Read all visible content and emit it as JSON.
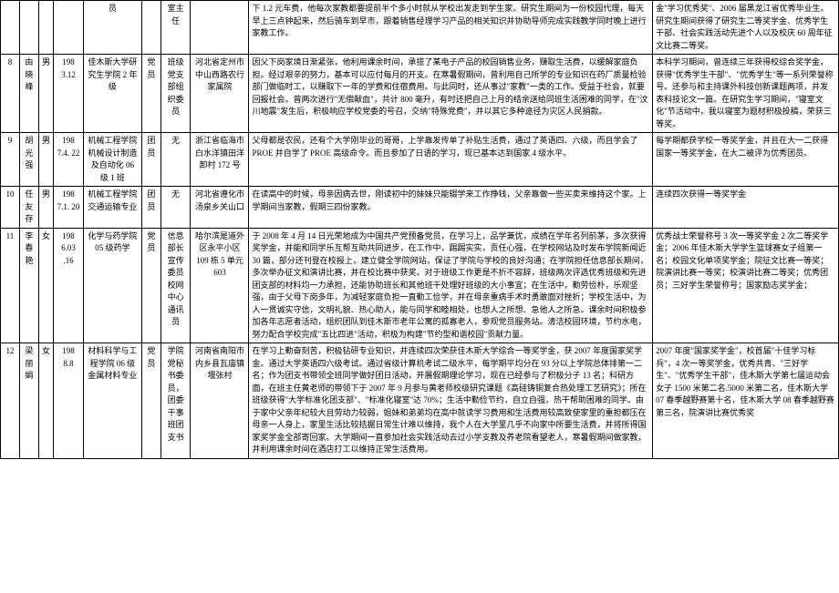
{
  "rows": [
    {
      "num": "",
      "name": "",
      "gender": "",
      "birth": "",
      "school": "员",
      "role1": "",
      "role2": "室主任",
      "addr": "",
      "desc": "下 1.2 元车费，他每次家教都要提前半个多小时就从学校出发走到学生家。研究生期间为一份校园代理，每天早上三点钟起来，然后骑车到早市，跟着销售经理学习产品的相关知识并协助导师完成实践教学同时晚上进行家教工作。",
      "award": "金\"学习优秀奖\"、2006 届黑龙江省优秀毕业生。研究生期间获得了研究生二等奖学金、优秀学生干部、社会实践活动先进个人以及校庆 60 周年征文比赛二等奖。"
    },
    {
      "num": "8",
      "name": "由晓峰",
      "gender": "男",
      "birth": "198 3.12",
      "school": "佳木斯大学研究生学院 2 年级",
      "role1": "党员",
      "role2": "班级党支部组织委员",
      "addr": "河北省定州市中山西路农行家属院",
      "desc": "因父下岗家境日渐紧张，他利用课余时间，承揽了某电子产品的校园销售业务，赚取生活费，以缓解家庭负担。经过艰辛的努力，基本可以应付每月的开支。在寒暑假期间，曾利用自己所学的专业知识在药厂质量检验部门做临时工，以赚取下一年的学费和住宿费用。与此同时，还从事过\"家教\"一类的工作。受益于社会，就要回报社会。曾两次进行\"无偿献血\"，共计 800 毫升，有时还把自己上月的结余送给同班生活困难的同学，在\"汶川地震\"发生后，积极响应学校党委的号召，交纳\"特殊党费\"，并以其它多种途径为灾区人民捐款。",
      "award": "本科学习期间，曾连续三年获得校综合奖学金，获得\"优秀学生干部\"、\"优秀学生\"等一系列荣誉称号。还参与和主持课外科技创新课题两项，并发表科技论文一篇。在研究生学习期间，\"寝室文化\"节活动中，我以寝室为题材积极投稿，荣获三等奖。"
    },
    {
      "num": "9",
      "name": "胡光强",
      "gender": "男",
      "birth": "198 7.4. 22",
      "school": "机械工程学院机械设计制造及自动化 06 级 1 班",
      "role1": "团员",
      "role2": "无",
      "addr": "浙江省临海市白水洋镇田洋卸村 172 号",
      "desc": "父母都是农民，还有个大学刚毕业的哥哥，上学靠发传单了补贴生活费，通过了英语四、六级，而且学会了 PROE 并自学了 PROE 高级命令。而且参加了日语的学习，现已基本达到国家 4 级水平。",
      "award": "每学期都获学校一等奖学金，并且在大一二获得国家一等奖学金，在大二被评为优秀团员。"
    },
    {
      "num": "10",
      "name": "任友存",
      "gender": "男",
      "birth": "198 7.1. 20",
      "school": "机械工程学院交通运输专业",
      "role1": "团员",
      "role2": "无",
      "addr": "河北省遵化市汤泉乡关山口",
      "desc": "在读高中的时候，母亲因病去世，刚读初中的妹妹只能辍学来工作挣钱，父亲靠做一些买卖来维持这个家。上学期间当家教，假期三四份家教。",
      "award": "连续四次获得一等奖学金"
    },
    {
      "num": "11",
      "name": "李春艳",
      "gender": "女",
      "birth": "198 6.03 .16",
      "school": "化学与药学院 05 级药学",
      "role1": "党员",
      "role2": "信息部长宣传委员校网中心通讯员",
      "addr": "哈尔滨是道外区永平小区 109 栋 5 单元 603",
      "desc": "于 2008 年 4 月 14 日光荣地成为中国共产党预备党员，在学习上，品学兼优，成绩在学年名列前茅，多次获得奖学金，并能和同学乐互帮互助共同进步，在工作中，踢踢实实，贡任心强，在学校网站及时发布学院新闻近 30 篇，部分还刊登在校报上，建立健全学院网站，保证了学院与学校的良好沟通；在学院担任信息部长期间，多次举办征文和演讲比赛，并在校比赛中获奖。对于班级工作更是不折不容辞，班级两次评选优秀班级和先进团支部的材料均一力承担，还能协助班长和其他班干处理好班级的大小事宜；在生活中，勤劳俭朴，乐观坚强，由于父母下岗多年，为减轻家庭负担一直勤工俭学，并在母亲重病手术时勇敢面对挫折；学校生活中，为人一贯诚实守信，文明礼貌、热心助人，能与同学和睦相处，也想人之所想、急他人之所急。课余时间积极参加各年志愿者活动，组织团队到佳木斯市老年公寓的孤寡老人，参观党员服务站。清洁校园环境，节约水电，努力配合学校完成\"五比四进\"活动，积极为构建\"节约型和谐校园\"贡献力量。",
      "award": "优秀战士荣誉称号 3 次一等奖学金 2 次二等奖学金；2006 年佳木斯大学学生篮球赛女子组第一名；校园文化单项奖学金；院征文比赛一等奖；院演讲比赛一等奖；校演讲比赛二等奖；优秀团员；三好学生荣誉称号；国家励志奖学金；"
    },
    {
      "num": "12",
      "name": "梁丽娟",
      "gender": "女",
      "birth": "198 8.8",
      "school": "材料科学与工程学院 06 级金属材料专业",
      "role1": "党员",
      "role2": "学院党秘书委员，团委干事班团支书",
      "addr": "河南省南阳市内乡县瓦庙镇堰张村",
      "desc": "在学习上勤奋刻苦，积极钻研专业知识，并连续四次荣获佳木斯大学综合一等奖学金，获 2007 年度国家奖学金。通过大学英语四六级考试。通过省级计算机考试二级水平，每学期平均分在 93 分以上学院总体排第一二名；作为团支书带领全班同学做好团日活动，开展假期理论学习，现在已经参与了积极分子 13 名；科研方面，在班主任黄老师的带领下于 2007 年 9 月参与黄老师校级研究课题《高硅铸铜复合热处理工艺研究》；所在班级获得\"大学标准化团支部\"、\"标准化寝室\"达 70%；生活中勤俭节约，自立自强，热干帮助困难的同学。由于家中父亲年纪较大且劳动力较弱，姐妹和弟弟均在高中就读学习费用和生活费用较高致使家里的重担都压在母亲一人身上，家里生活比较拮据日常生计难以维持，我个人在大学里几乎不向家中所要生活费，并将所得国家奖学金全部寄回家。大学期间一直参加社会实践活动去过小学支教及养老院看望老人，寒暑假期间做家教，并利用课余时间在酒店打工以维持正常生活费用。",
      "award": "2007 年度\"国家奖学金\"，校首届\"十佳学习标兵\"，4 次一等奖学金，优秀共青、\"三好学生\"、\"优秀学生干部\"，佳木斯大学第七届运动会女子 1500 米第二名.5000 米第二名，佳木斯大学 07 春季越野赛第十名，佳木斯大学 08 春季越野赛第三名，院演讲比赛优秀奖"
    }
  ]
}
